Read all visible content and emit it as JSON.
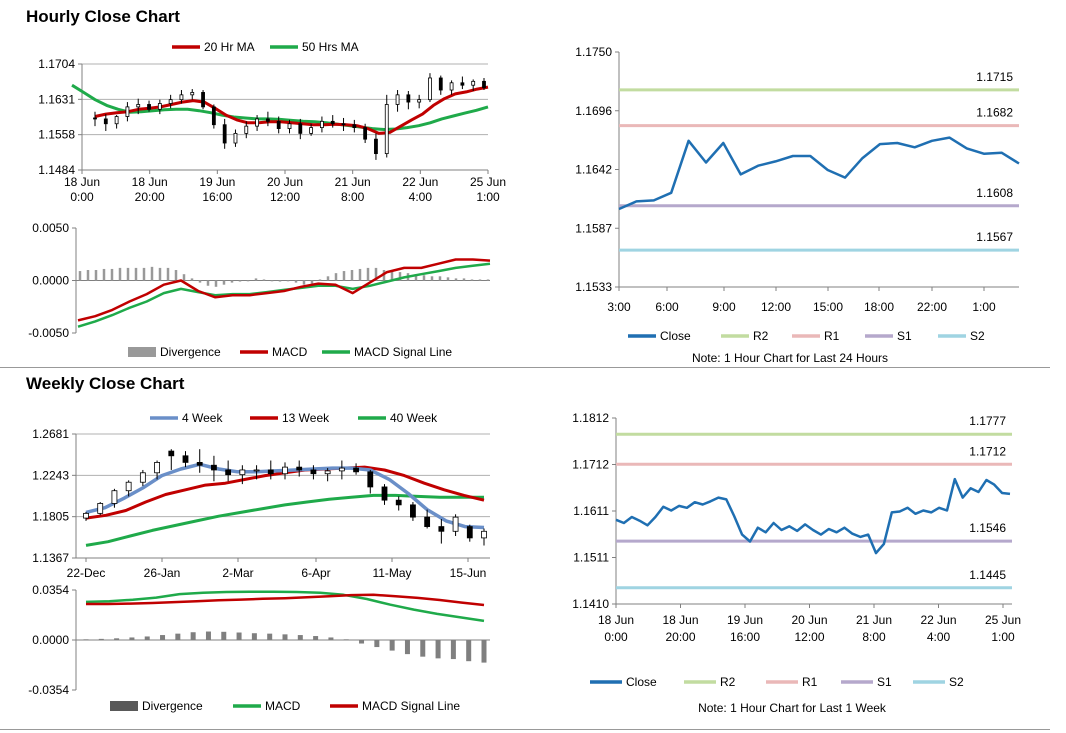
{
  "sections": [
    {
      "title": "Hourly Close Chart"
    },
    {
      "title": "Weekly Close Chart"
    }
  ],
  "colors": {
    "red": "#c00000",
    "green": "#1faa4a",
    "blue": "#1f6fb2",
    "blue4w": "#6a8fc8",
    "r2": "#c2dca0",
    "r1": "#eab8b8",
    "s1": "#b5a8cc",
    "s2": "#9fd4e2",
    "gray": "#999999",
    "axis": "#808080"
  },
  "chart_data": [
    {
      "id": "hourly-price",
      "type": "line",
      "legend": [
        "20 Hr MA",
        "50 Hrs MA"
      ],
      "x_labels": [
        [
          "18 Jun",
          "0:00"
        ],
        [
          "18 Jun",
          "20:00"
        ],
        [
          "19 Jun",
          "16:00"
        ],
        [
          "20 Jun",
          "12:00"
        ],
        [
          "21 Jun",
          "8:00"
        ],
        [
          "22 Jun",
          "4:00"
        ],
        [
          "25 Jun",
          "1:00"
        ]
      ],
      "y_ticks": [
        "1.1704",
        "1.1631",
        "1.1558",
        "1.1484"
      ],
      "ylim": [
        1.1484,
        1.1704
      ],
      "ohlc": [
        [
          1.1592,
          1.1605,
          1.1575,
          1.159
        ],
        [
          1.159,
          1.16,
          1.1565,
          1.158
        ],
        [
          1.158,
          1.1598,
          1.157,
          1.1595
        ],
        [
          1.1595,
          1.1625,
          1.1585,
          1.1615
        ],
        [
          1.1615,
          1.1632,
          1.16,
          1.162
        ],
        [
          1.162,
          1.1628,
          1.1605,
          1.161
        ],
        [
          1.161,
          1.163,
          1.16,
          1.1622
        ],
        [
          1.1622,
          1.164,
          1.1612,
          1.163
        ],
        [
          1.163,
          1.165,
          1.1622,
          1.164
        ],
        [
          1.164,
          1.1652,
          1.163,
          1.1645
        ],
        [
          1.1645,
          1.165,
          1.161,
          1.1615
        ],
        [
          1.1615,
          1.162,
          1.157,
          1.1578
        ],
        [
          1.1578,
          1.159,
          1.1528,
          1.154
        ],
        [
          1.154,
          1.1568,
          1.1532,
          1.156
        ],
        [
          1.156,
          1.1585,
          1.155,
          1.1575
        ],
        [
          1.1575,
          1.1598,
          1.1565,
          1.159
        ],
        [
          1.159,
          1.1605,
          1.1575,
          1.1585
        ],
        [
          1.1585,
          1.1595,
          1.156,
          1.157
        ],
        [
          1.157,
          1.1588,
          1.156,
          1.158
        ],
        [
          1.158,
          1.159,
          1.1548,
          1.156
        ],
        [
          1.156,
          1.158,
          1.1555,
          1.1572
        ],
        [
          1.1572,
          1.1595,
          1.1562,
          1.1585
        ],
        [
          1.1585,
          1.1598,
          1.1572,
          1.158
        ],
        [
          1.158,
          1.1592,
          1.1565,
          1.1578
        ],
        [
          1.1578,
          1.1588,
          1.1562,
          1.1572
        ],
        [
          1.1572,
          1.158,
          1.154,
          1.1548
        ],
        [
          1.1548,
          1.156,
          1.1505,
          1.1518
        ],
        [
          1.1518,
          1.164,
          1.151,
          1.162
        ],
        [
          1.162,
          1.165,
          1.1605,
          1.164
        ],
        [
          1.164,
          1.1648,
          1.161,
          1.1625
        ],
        [
          1.1625,
          1.164,
          1.1612,
          1.163
        ],
        [
          1.163,
          1.1685,
          1.1625,
          1.1675
        ],
        [
          1.1675,
          1.168,
          1.164,
          1.165
        ],
        [
          1.165,
          1.167,
          1.164,
          1.1665
        ],
        [
          1.1665,
          1.1678,
          1.1652,
          1.166
        ],
        [
          1.166,
          1.1672,
          1.1648,
          1.1668
        ],
        [
          1.1668,
          1.1675,
          1.165,
          1.1655
        ]
      ],
      "series": [
        {
          "name": "20 Hr MA",
          "values": [
            1.1595,
            1.16,
            1.1603,
            1.1605,
            1.161,
            1.1612,
            1.1615,
            1.162,
            1.1625,
            1.1628,
            1.1625,
            1.1612,
            1.1598,
            1.1588,
            1.1582,
            1.1582,
            1.1584,
            1.1584,
            1.1582,
            1.158,
            1.1578,
            1.1578,
            1.1579,
            1.1578,
            1.1576,
            1.157,
            1.156,
            1.1562,
            1.1575,
            1.1588,
            1.16,
            1.1618,
            1.1632,
            1.1642,
            1.1646,
            1.1652,
            1.1656
          ]
        },
        {
          "name": "50 Hrs MA",
          "values": [
            1.166,
            1.1645,
            1.163,
            1.1618,
            1.161,
            1.1604,
            1.1605,
            1.1607,
            1.1609,
            1.161,
            1.161,
            1.1607,
            1.1603,
            1.1598,
            1.1594,
            1.1592,
            1.159,
            1.159,
            1.1589,
            1.1587,
            1.1585,
            1.1584,
            1.1582,
            1.1579,
            1.1576,
            1.1573,
            1.157,
            1.1568,
            1.1569,
            1.1572,
            1.1576,
            1.1582,
            1.159,
            1.1596,
            1.1602,
            1.1608,
            1.1615
          ]
        }
      ]
    },
    {
      "id": "hourly-macd",
      "type": "line",
      "legend": [
        "Divergence",
        "MACD",
        "MACD Signal Line"
      ],
      "y_ticks": [
        "0.0050",
        "0.0000",
        "-0.0050"
      ],
      "ylim": [
        -0.005,
        0.005
      ],
      "divergence": [
        0.0009,
        0.001,
        0.001,
        0.0011,
        0.0011,
        0.0012,
        0.0012,
        0.0012,
        0.0012,
        0.0013,
        0.0012,
        0.0012,
        0.001,
        0.0006,
        0.0002,
        -0.0002,
        -0.0005,
        -0.0006,
        -0.0004,
        -0.0002,
        -0.0001,
        0.0,
        0.0002,
        0.0001,
        0.0,
        -0.0001,
        0.0,
        -0.0002,
        -0.0004,
        -0.0003,
        0.0001,
        0.0004,
        0.0007,
        0.0009,
        0.001,
        0.0011,
        0.0012,
        0.0012,
        0.001,
        0.0009,
        0.0008,
        0.0007,
        0.0006,
        0.0005,
        0.0004,
        0.0004,
        0.0003,
        0.0002,
        0.0002,
        0.0001,
        0.0001,
        0.0001
      ],
      "series": [
        {
          "name": "MACD",
          "values": [
            -0.0038,
            -0.0034,
            -0.0028,
            -0.002,
            -0.0013,
            -0.0004,
            0.0,
            -0.001,
            -0.0016,
            -0.0014,
            -0.0014,
            -0.0012,
            -0.001,
            -0.0006,
            -0.0003,
            -0.0004,
            -0.0012,
            -0.0002,
            0.0008,
            0.0012,
            0.0012,
            0.0016,
            0.002,
            0.002,
            0.0019
          ]
        },
        {
          "name": "MACD Signal Line",
          "values": [
            -0.0044,
            -0.0039,
            -0.0033,
            -0.0026,
            -0.002,
            -0.0012,
            -0.0008,
            -0.0011,
            -0.0014,
            -0.0013,
            -0.0013,
            -0.0011,
            -0.0009,
            -0.0007,
            -0.0005,
            -0.0005,
            -0.0008,
            -0.0005,
            -0.0001,
            0.0003,
            0.0006,
            0.0009,
            0.0012,
            0.0014,
            0.0016
          ]
        }
      ]
    },
    {
      "id": "hourly-24h",
      "type": "line",
      "y_ticks": [
        "1.1750",
        "1.1696",
        "1.1642",
        "1.1587",
        "1.1533"
      ],
      "ylim": [
        1.1533,
        1.175
      ],
      "x_labels": [
        "3:00",
        "6:00",
        "9:00",
        "12:00",
        "15:00",
        "18:00",
        "22:00",
        "1:00"
      ],
      "legend": [
        "Close",
        "R2",
        "R1",
        "S1",
        "S2"
      ],
      "levels": [
        {
          "name": "R2",
          "value": 1.1715,
          "label": "1.1715"
        },
        {
          "name": "R1",
          "value": 1.1682,
          "label": "1.1682"
        },
        {
          "name": "S1",
          "value": 1.1608,
          "label": "1.1608"
        },
        {
          "name": "S2",
          "value": 1.1567,
          "label": "1.1567"
        }
      ],
      "values": [
        1.1605,
        1.1612,
        1.1613,
        1.162,
        1.1668,
        1.1648,
        1.1666,
        1.1637,
        1.1645,
        1.1649,
        1.1654,
        1.1654,
        1.1641,
        1.1634,
        1.1652,
        1.1665,
        1.1666,
        1.1662,
        1.1668,
        1.1671,
        1.1661,
        1.1656,
        1.1657,
        1.1647
      ],
      "note": "Note: 1 Hour Chart for Last 24 Hours"
    },
    {
      "id": "weekly-price",
      "type": "line",
      "legend": [
        "4 Week",
        "13 Week",
        "40 Week"
      ],
      "x_labels": [
        "22-Dec",
        "26-Jan",
        "2-Mar",
        "6-Apr",
        "11-May",
        "15-Jun"
      ],
      "y_ticks": [
        "1.2681",
        "1.2243",
        "1.1805",
        "1.1367"
      ],
      "ylim": [
        1.1367,
        1.2681
      ],
      "ohlc": [
        [
          1.179,
          1.1855,
          1.176,
          1.184
        ],
        [
          1.184,
          1.196,
          1.182,
          1.1945
        ],
        [
          1.1945,
          1.21,
          1.19,
          1.208
        ],
        [
          1.208,
          1.219,
          1.202,
          1.217
        ],
        [
          1.217,
          1.23,
          1.213,
          1.227
        ],
        [
          1.227,
          1.24,
          1.22,
          1.238
        ],
        [
          1.25,
          1.252,
          1.23,
          1.245
        ],
        [
          1.245,
          1.25,
          1.233,
          1.238
        ],
        [
          1.238,
          1.252,
          1.227,
          1.235
        ],
        [
          1.235,
          1.245,
          1.218,
          1.23
        ],
        [
          1.23,
          1.24,
          1.218,
          1.225
        ],
        [
          1.225,
          1.235,
          1.215,
          1.23
        ],
        [
          1.23,
          1.235,
          1.22,
          1.23
        ],
        [
          1.23,
          1.24,
          1.22,
          1.226
        ],
        [
          1.226,
          1.238,
          1.22,
          1.233
        ],
        [
          1.233,
          1.24,
          1.223,
          1.23
        ],
        [
          1.23,
          1.235,
          1.22,
          1.226
        ],
        [
          1.226,
          1.232,
          1.218,
          1.229
        ],
        [
          1.229,
          1.24,
          1.22,
          1.232
        ],
        [
          1.232,
          1.237,
          1.225,
          1.228
        ],
        [
          1.228,
          1.23,
          1.205,
          1.212
        ],
        [
          1.212,
          1.215,
          1.193,
          1.198
        ],
        [
          1.198,
          1.202,
          1.187,
          1.193
        ],
        [
          1.193,
          1.196,
          1.176,
          1.18
        ],
        [
          1.18,
          1.188,
          1.168,
          1.17
        ],
        [
          1.17,
          1.178,
          1.152,
          1.165
        ],
        [
          1.165,
          1.183,
          1.16,
          1.18
        ],
        [
          1.17,
          1.172,
          1.154,
          1.158
        ],
        [
          1.158,
          1.168,
          1.15,
          1.165
        ]
      ],
      "series": [
        {
          "name": "4 Week",
          "values": [
            1.185,
            1.19,
            1.2,
            1.211,
            1.224,
            1.231,
            1.236,
            1.231,
            1.228,
            1.228,
            1.229,
            1.23,
            1.231,
            1.232,
            1.232,
            1.23,
            1.22,
            1.205,
            1.188,
            1.176,
            1.17,
            1.169
          ]
        },
        {
          "name": "13 Week",
          "values": [
            1.179,
            1.182,
            1.187,
            1.196,
            1.204,
            1.209,
            1.214,
            1.216,
            1.22,
            1.224,
            1.227,
            1.23,
            1.231,
            1.232,
            1.233,
            1.23,
            1.224,
            1.216,
            1.209,
            1.203,
            1.198
          ]
        },
        {
          "name": "40 Week",
          "values": [
            1.15,
            1.154,
            1.16,
            1.166,
            1.171,
            1.176,
            1.181,
            1.185,
            1.189,
            1.193,
            1.196,
            1.199,
            1.201,
            1.203,
            1.203,
            1.202,
            1.201,
            1.201,
            1.201
          ]
        }
      ]
    },
    {
      "id": "weekly-macd",
      "type": "line",
      "legend": [
        "Divergence",
        "MACD",
        "MACD Signal Line"
      ],
      "y_ticks": [
        "0.0354",
        "0.0000",
        "-0.0354"
      ],
      "ylim": [
        -0.0354,
        0.0354
      ],
      "divergence": [
        0.0005,
        0.0008,
        0.0012,
        0.0018,
        0.0025,
        0.0035,
        0.0045,
        0.0055,
        0.006,
        0.0058,
        0.0053,
        0.0048,
        0.0045,
        0.004,
        0.0035,
        0.0028,
        0.0018,
        0.0005,
        -0.0025,
        -0.005,
        -0.0075,
        -0.01,
        -0.0118,
        -0.013,
        -0.0135,
        -0.015,
        -0.016
      ],
      "series": [
        {
          "name": "MACD",
          "values": [
            0.027,
            0.0275,
            0.0285,
            0.03,
            0.0325,
            0.0335,
            0.034,
            0.0342,
            0.0342,
            0.034,
            0.0335,
            0.032,
            0.029,
            0.025,
            0.0215,
            0.0185,
            0.016,
            0.0135
          ]
        },
        {
          "name": "MACD Signal Line",
          "values": [
            0.0255,
            0.0255,
            0.0258,
            0.0262,
            0.0268,
            0.0275,
            0.0282,
            0.0286,
            0.0292,
            0.0296,
            0.0302,
            0.031,
            0.0318,
            0.032,
            0.031,
            0.0298,
            0.0283,
            0.0265,
            0.0248
          ]
        }
      ]
    },
    {
      "id": "weekly-1w",
      "type": "line",
      "y_ticks": [
        "1.1812",
        "1.1712",
        "1.1611",
        "1.1511",
        "1.1410"
      ],
      "ylim": [
        1.141,
        1.1812
      ],
      "x_labels": [
        [
          "18 Jun",
          "0:00"
        ],
        [
          "18 Jun",
          "20:00"
        ],
        [
          "19 Jun",
          "16:00"
        ],
        [
          "20 Jun",
          "12:00"
        ],
        [
          "21 Jun",
          "8:00"
        ],
        [
          "22 Jun",
          "4:00"
        ],
        [
          "25 Jun",
          "1:00"
        ]
      ],
      "legend": [
        "Close",
        "R2",
        "R1",
        "S1",
        "S2"
      ],
      "levels": [
        {
          "name": "R2",
          "value": 1.1777,
          "label": "1.1777"
        },
        {
          "name": "R1",
          "value": 1.1712,
          "label": "1.1712"
        },
        {
          "name": "S1",
          "value": 1.1546,
          "label": "1.1546"
        },
        {
          "name": "S2",
          "value": 1.1445,
          "label": "1.1445"
        }
      ],
      "values": [
        1.1592,
        1.1585,
        1.1598,
        1.159,
        1.158,
        1.1598,
        1.162,
        1.1612,
        1.1622,
        1.1618,
        1.163,
        1.1625,
        1.1632,
        1.164,
        1.1636,
        1.16,
        1.156,
        1.1545,
        1.1575,
        1.1565,
        1.1585,
        1.157,
        1.1578,
        1.1568,
        1.1582,
        1.157,
        1.156,
        1.1572,
        1.1565,
        1.1575,
        1.1562,
        1.1555,
        1.156,
        1.152,
        1.154,
        1.1608,
        1.161,
        1.1618,
        1.1605,
        1.1612,
        1.1608,
        1.1618,
        1.1612,
        1.168,
        1.164,
        1.166,
        1.1652,
        1.1678,
        1.1668,
        1.165,
        1.1648
      ],
      "note": "Note: 1 Hour Chart for Last 1 Week"
    }
  ]
}
